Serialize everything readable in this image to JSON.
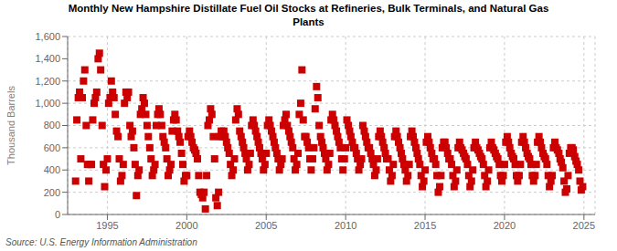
{
  "chart_data": {
    "type": "scatter",
    "title": "Monthly New Hampshire Distillate Fuel Oil Stocks at Refineries, Bulk Terminals, and Natural Gas\nPlants",
    "ylabel": "Thousand Barrels",
    "annotations": [
      "Source: U.S. Energy Information Administration"
    ],
    "color": "#CC0000",
    "marker": "square",
    "grid": true,
    "xlim": [
      1992.5,
      2025.7
    ],
    "xticks": [
      1995,
      2000,
      2005,
      2010,
      2015,
      2020,
      2025
    ],
    "ylim": [
      0,
      1600
    ],
    "yticks": [
      0,
      200,
      400,
      600,
      800,
      {
        "value": 1000,
        "label": "1,000"
      },
      {
        "value": 1200,
        "label": "1,200"
      },
      {
        "value": 1400,
        "label": "1,400"
      },
      {
        "value": 1600,
        "label": "1,600"
      }
    ],
    "x": [
      1993.0,
      1993.08,
      1993.17,
      1993.25,
      1993.33,
      1993.42,
      1993.5,
      1993.58,
      1993.67,
      1993.75,
      1993.83,
      1993.92,
      1994.0,
      1994.08,
      1994.17,
      1994.25,
      1994.33,
      1994.42,
      1994.5,
      1994.58,
      1994.67,
      1994.75,
      1994.83,
      1994.92,
      1995.0,
      1995.08,
      1995.17,
      1995.25,
      1995.33,
      1995.42,
      1995.5,
      1995.58,
      1995.67,
      1995.75,
      1995.83,
      1995.92,
      1996.0,
      1996.08,
      1996.17,
      1996.25,
      1996.33,
      1996.42,
      1996.5,
      1996.58,
      1996.67,
      1996.75,
      1996.83,
      1996.92,
      1997.0,
      1997.08,
      1997.17,
      1997.25,
      1997.33,
      1997.42,
      1997.5,
      1997.58,
      1997.67,
      1997.75,
      1997.83,
      1997.92,
      1998.0,
      1998.08,
      1998.17,
      1998.25,
      1998.33,
      1998.42,
      1998.5,
      1998.58,
      1998.67,
      1998.75,
      1998.83,
      1998.92,
      1999.0,
      1999.08,
      1999.17,
      1999.25,
      1999.33,
      1999.42,
      1999.5,
      1999.58,
      1999.67,
      1999.75,
      1999.83,
      1999.92,
      2000.0,
      2000.08,
      2000.17,
      2000.25,
      2000.33,
      2000.42,
      2000.5,
      2000.58,
      2000.67,
      2000.75,
      2000.83,
      2000.92,
      2001.0,
      2001.08,
      2001.17,
      2001.25,
      2001.33,
      2001.42,
      2001.5,
      2001.58,
      2001.67,
      2001.75,
      2001.83,
      2001.92,
      2002.0,
      2002.08,
      2002.17,
      2002.25,
      2002.33,
      2002.42,
      2002.5,
      2002.58,
      2002.67,
      2002.75,
      2002.83,
      2002.92,
      2003.0,
      2003.08,
      2003.17,
      2003.25,
      2003.33,
      2003.42,
      2003.5,
      2003.58,
      2003.67,
      2003.75,
      2003.83,
      2003.92,
      2004.0,
      2004.08,
      2004.17,
      2004.25,
      2004.33,
      2004.42,
      2004.5,
      2004.58,
      2004.67,
      2004.75,
      2004.83,
      2004.92,
      2005.0,
      2005.08,
      2005.17,
      2005.25,
      2005.33,
      2005.42,
      2005.5,
      2005.58,
      2005.67,
      2005.75,
      2005.83,
      2005.92,
      2006.0,
      2006.08,
      2006.17,
      2006.25,
      2006.33,
      2006.42,
      2006.5,
      2006.58,
      2006.67,
      2006.75,
      2006.83,
      2006.92,
      2007.0,
      2007.08,
      2007.17,
      2007.25,
      2007.33,
      2007.42,
      2007.5,
      2007.58,
      2007.67,
      2007.75,
      2007.83,
      2007.92,
      2008.0,
      2008.08,
      2008.17,
      2008.25,
      2008.33,
      2008.42,
      2008.5,
      2008.58,
      2008.67,
      2008.75,
      2008.83,
      2008.92,
      2009.0,
      2009.08,
      2009.17,
      2009.25,
      2009.33,
      2009.42,
      2009.5,
      2009.58,
      2009.67,
      2009.75,
      2009.83,
      2009.92,
      2010.0,
      2010.08,
      2010.17,
      2010.25,
      2010.33,
      2010.42,
      2010.5,
      2010.58,
      2010.67,
      2010.75,
      2010.83,
      2010.92,
      2011.0,
      2011.08,
      2011.17,
      2011.25,
      2011.33,
      2011.42,
      2011.5,
      2011.58,
      2011.67,
      2011.75,
      2011.83,
      2011.92,
      2012.0,
      2012.08,
      2012.17,
      2012.25,
      2012.33,
      2012.42,
      2012.5,
      2012.58,
      2012.67,
      2012.75,
      2012.83,
      2012.92,
      2013.0,
      2013.08,
      2013.17,
      2013.25,
      2013.33,
      2013.42,
      2013.5,
      2013.58,
      2013.67,
      2013.75,
      2013.83,
      2013.92,
      2014.0,
      2014.08,
      2014.17,
      2014.25,
      2014.33,
      2014.42,
      2014.5,
      2014.58,
      2014.67,
      2014.75,
      2014.83,
      2014.92,
      2015.0,
      2015.08,
      2015.17,
      2015.25,
      2015.33,
      2015.42,
      2015.5,
      2015.58,
      2015.67,
      2015.75,
      2015.83,
      2015.92,
      2016.0,
      2016.08,
      2016.17,
      2016.25,
      2016.33,
      2016.42,
      2016.5,
      2016.58,
      2016.67,
      2016.75,
      2016.83,
      2016.92,
      2017.0,
      2017.08,
      2017.17,
      2017.25,
      2017.33,
      2017.42,
      2017.5,
      2017.58,
      2017.67,
      2017.75,
      2017.83,
      2017.92,
      2018.0,
      2018.08,
      2018.17,
      2018.25,
      2018.33,
      2018.42,
      2018.5,
      2018.58,
      2018.67,
      2018.75,
      2018.83,
      2018.92,
      2019.0,
      2019.08,
      2019.17,
      2019.25,
      2019.33,
      2019.42,
      2019.5,
      2019.58,
      2019.67,
      2019.75,
      2019.83,
      2019.92,
      2020.0,
      2020.08,
      2020.17,
      2020.25,
      2020.33,
      2020.42,
      2020.5,
      2020.58,
      2020.67,
      2020.75,
      2020.83,
      2020.92,
      2021.0,
      2021.08,
      2021.17,
      2021.25,
      2021.33,
      2021.42,
      2021.5,
      2021.58,
      2021.67,
      2021.75,
      2021.83,
      2021.92,
      2022.0,
      2022.08,
      2022.17,
      2022.25,
      2022.33,
      2022.42,
      2022.5,
      2022.58,
      2022.67,
      2022.75,
      2022.83,
      2022.92,
      2023.0,
      2023.08,
      2023.17,
      2023.25,
      2023.33,
      2023.42,
      2023.5,
      2023.58,
      2023.67,
      2023.75,
      2023.83,
      2023.92,
      2024.0,
      2024.08,
      2024.17,
      2024.25,
      2024.33,
      2024.42,
      2024.5,
      2024.58,
      2024.67,
      2024.75,
      2024.83,
      2024.92
    ],
    "values": [
      300,
      850,
      1050,
      1100,
      500,
      1050,
      1200,
      1300,
      800,
      450,
      300,
      450,
      450,
      850,
      1000,
      1050,
      1100,
      1400,
      1450,
      1300,
      800,
      450,
      250,
      400,
      500,
      1000,
      1050,
      1200,
      1100,
      1050,
      900,
      750,
      700,
      500,
      300,
      350,
      450,
      1000,
      1100,
      1050,
      1100,
      800,
      700,
      750,
      600,
      450,
      170,
      350,
      400,
      900,
      950,
      1050,
      1000,
      900,
      800,
      700,
      600,
      500,
      350,
      400,
      450,
      800,
      900,
      950,
      900,
      800,
      700,
      650,
      600,
      500,
      350,
      400,
      450,
      750,
      850,
      900,
      850,
      750,
      700,
      650,
      550,
      450,
      300,
      350,
      350,
      700,
      750,
      700,
      650,
      600,
      580,
      550,
      500,
      350,
      200,
      180,
      150,
      200,
      50,
      350,
      800,
      850,
      950,
      900,
      700,
      500,
      150,
      80,
      200,
      700,
      750,
      700,
      750,
      700,
      650,
      600,
      550,
      450,
      350,
      400,
      500,
      850,
      950,
      900,
      750,
      700,
      650,
      600,
      550,
      500,
      400,
      450,
      550,
      800,
      850,
      800,
      750,
      700,
      650,
      600,
      550,
      500,
      400,
      450,
      550,
      800,
      850,
      800,
      750,
      700,
      650,
      600,
      550,
      500,
      400,
      450,
      500,
      800,
      850,
      900,
      800,
      750,
      700,
      650,
      600,
      500,
      400,
      450,
      550,
      900,
      1000,
      1300,
      850,
      700,
      700,
      650,
      600,
      500,
      400,
      500,
      600,
      950,
      1150,
      1050,
      800,
      700,
      650,
      600,
      550,
      500,
      400,
      450,
      550,
      850,
      900,
      850,
      800,
      750,
      700,
      650,
      600,
      500,
      400,
      500,
      600,
      850,
      800,
      750,
      700,
      650,
      600,
      600,
      550,
      500,
      400,
      450,
      500,
      800,
      750,
      700,
      650,
      600,
      600,
      550,
      500,
      450,
      350,
      400,
      500,
      700,
      750,
      700,
      650,
      600,
      550,
      500,
      500,
      400,
      300,
      350,
      450,
      700,
      750,
      700,
      650,
      600,
      550,
      500,
      450,
      400,
      300,
      350,
      450,
      700,
      750,
      700,
      650,
      600,
      550,
      500,
      450,
      350,
      250,
      300,
      400,
      650,
      700,
      650,
      600,
      550,
      500,
      500,
      450,
      350,
      200,
      250,
      350,
      600,
      650,
      650,
      600,
      550,
      500,
      500,
      450,
      350,
      250,
      300,
      400,
      600,
      650,
      600,
      580,
      550,
      520,
      500,
      450,
      350,
      250,
      300,
      400,
      600,
      650,
      600,
      580,
      550,
      520,
      500,
      450,
      350,
      250,
      300,
      400,
      600,
      650,
      600,
      580,
      550,
      520,
      500,
      450,
      350,
      300,
      350,
      450,
      650,
      700,
      650,
      600,
      550,
      520,
      500,
      450,
      350,
      300,
      350,
      450,
      650,
      700,
      650,
      600,
      550,
      520,
      500,
      450,
      350,
      300,
      350,
      450,
      650,
      700,
      650,
      600,
      550,
      520,
      500,
      450,
      350,
      250,
      300,
      350,
      600,
      650,
      600,
      580,
      550,
      500,
      470,
      420,
      300,
      200,
      230,
      350,
      550,
      600,
      600,
      580,
      520,
      480,
      450,
      400,
      300,
      220,
      250
    ]
  }
}
